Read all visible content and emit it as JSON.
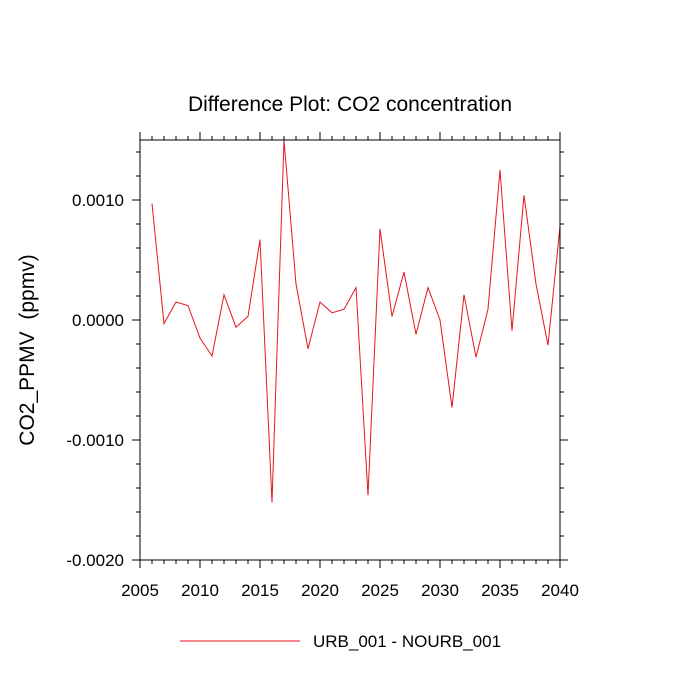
{
  "chart_data": {
    "type": "line",
    "title": "Difference Plot: CO2 concentration",
    "xlabel": "",
    "ylabel": "CO2_PPMV  (ppmv)",
    "xlim": [
      2005,
      2040
    ],
    "ylim": [
      -0.002,
      0.0015
    ],
    "x_ticks": [
      2005,
      2010,
      2015,
      2020,
      2025,
      2030,
      2035,
      2040
    ],
    "x_tick_labels": [
      "2005",
      "2010",
      "2015",
      "2020",
      "2025",
      "2030",
      "2035",
      "2040"
    ],
    "y_ticks": [
      -0.002,
      -0.001,
      0.0,
      0.001
    ],
    "y_tick_labels": [
      "-0.0020",
      "-0.0010",
      "0.0000",
      "0.0010"
    ],
    "grid": false,
    "legend_position": "bottom",
    "series": [
      {
        "name": "URB_001 - NOURB_001",
        "color": "#e8141c",
        "x": [
          2006,
          2007,
          2008,
          2009,
          2010,
          2011,
          2012,
          2013,
          2014,
          2015,
          2016,
          2017,
          2018,
          2019,
          2020,
          2021,
          2022,
          2023,
          2024,
          2025,
          2026,
          2027,
          2028,
          2029,
          2030,
          2031,
          2032,
          2033,
          2034,
          2035,
          2036,
          2037,
          2038,
          2039,
          2040
        ],
        "values": [
          0.00097,
          -3e-05,
          0.00015,
          0.00012,
          -0.00015,
          -0.0003,
          0.00021,
          -6e-05,
          3e-05,
          0.00067,
          -0.00152,
          0.0015,
          0.0003,
          -0.00024,
          0.00015,
          6e-05,
          9e-05,
          0.00027,
          -0.00146,
          0.00076,
          3e-05,
          0.0004,
          -0.00012,
          0.00027,
          0.0,
          -0.00073,
          0.00021,
          -0.00031,
          9e-05,
          0.00125,
          -9e-05,
          0.00104,
          0.0003,
          -0.00021,
          0.00078
        ]
      }
    ]
  }
}
